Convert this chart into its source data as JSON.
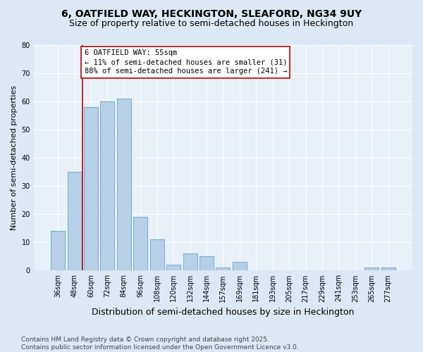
{
  "title": "6, OATFIELD WAY, HECKINGTON, SLEAFORD, NG34 9UY",
  "subtitle": "Size of property relative to semi-detached houses in Heckington",
  "xlabel": "Distribution of semi-detached houses by size in Heckington",
  "ylabel": "Number of semi-detached properties",
  "categories": [
    "36sqm",
    "48sqm",
    "60sqm",
    "72sqm",
    "84sqm",
    "96sqm",
    "108sqm",
    "120sqm",
    "132sqm",
    "144sqm",
    "157sqm",
    "169sqm",
    "181sqm",
    "193sqm",
    "205sqm",
    "217sqm",
    "229sqm",
    "241sqm",
    "253sqm",
    "265sqm",
    "277sqm"
  ],
  "values": [
    14,
    35,
    58,
    60,
    61,
    19,
    11,
    2,
    6,
    5,
    1,
    3,
    0,
    0,
    0,
    0,
    0,
    0,
    0,
    1,
    1
  ],
  "bar_color": "#b8cfe8",
  "bar_edge_color": "#6baed6",
  "vline_color": "#c00000",
  "vline_pos": 1.5,
  "annotation_text": "6 OATFIELD WAY: 55sqm\n← 11% of semi-detached houses are smaller (31)\n88% of semi-detached houses are larger (241) →",
  "annotation_box_color": "#ffffff",
  "annotation_box_edge_color": "#c00000",
  "ylim": [
    0,
    80
  ],
  "yticks": [
    0,
    10,
    20,
    30,
    40,
    50,
    60,
    70,
    80
  ],
  "bg_color": "#dce8f5",
  "plot_bg_color": "#e8f0f8",
  "footer": "Contains HM Land Registry data © Crown copyright and database right 2025.\nContains public sector information licensed under the Open Government Licence v3.0.",
  "title_fontsize": 10,
  "subtitle_fontsize": 9,
  "xlabel_fontsize": 9,
  "ylabel_fontsize": 8,
  "tick_fontsize": 7,
  "annotation_fontsize": 7.5,
  "footer_fontsize": 6.5
}
